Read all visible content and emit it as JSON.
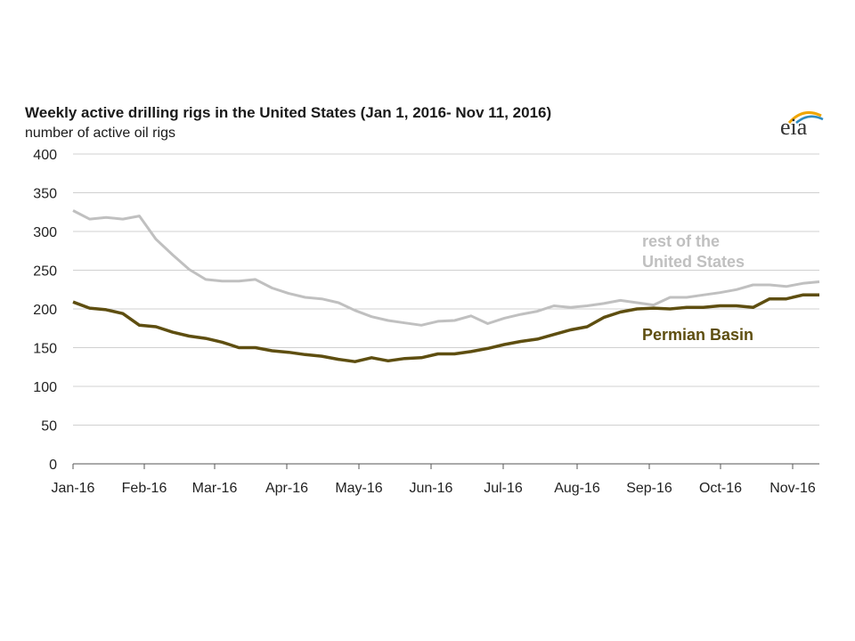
{
  "chart_data": {
    "type": "line",
    "title": "Weekly active drilling rigs in the United States (Jan 1, 2016- Nov 11, 2016)",
    "ylabel": "number of active oil rigs",
    "xlabel": "",
    "ylim": [
      0,
      400
    ],
    "yticks": [
      0,
      50,
      100,
      150,
      200,
      250,
      300,
      350,
      400
    ],
    "xticks": [
      "Jan-16",
      "Feb-16",
      "Mar-16",
      "Apr-16",
      "May-16",
      "Jun-16",
      "Jul-16",
      "Aug-16",
      "Sep-16",
      "Oct-16",
      "Nov-16"
    ],
    "grid": true,
    "series": [
      {
        "name": "rest of the United States",
        "label_lines": [
          "rest of the",
          "United States"
        ],
        "color": "#c0c0c0",
        "values": [
          327,
          316,
          318,
          316,
          320,
          290,
          270,
          251,
          238,
          236,
          236,
          238,
          227,
          220,
          215,
          213,
          208,
          198,
          190,
          185,
          182,
          179,
          184,
          185,
          191,
          181,
          188,
          193,
          197,
          204,
          202,
          204,
          207,
          211,
          208,
          205,
          215,
          215,
          218,
          221,
          225,
          231,
          231,
          229,
          233,
          235
        ]
      },
      {
        "name": "Permian Basin",
        "label_lines": [
          "Permian Basin"
        ],
        "color": "#5e4e10",
        "values": [
          209,
          201,
          199,
          194,
          179,
          177,
          170,
          165,
          162,
          157,
          150,
          150,
          146,
          144,
          141,
          139,
          135,
          132,
          137,
          133,
          136,
          137,
          142,
          142,
          145,
          149,
          154,
          158,
          161,
          167,
          173,
          177,
          189,
          196,
          200,
          201,
          200,
          202,
          202,
          204,
          204,
          202,
          213,
          213,
          218,
          218
        ]
      }
    ]
  },
  "brand": {
    "logo_text": "eia",
    "accent_color": "#f0a500",
    "accent_color_2": "#2e8bc0"
  }
}
